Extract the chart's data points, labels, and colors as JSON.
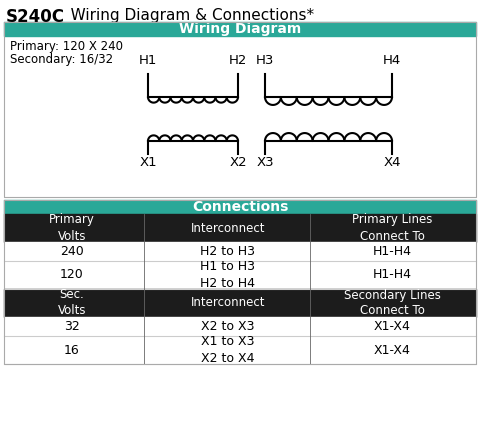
{
  "title_bold": "S240C",
  "title_rest": "   Wiring Diagram & Connections*",
  "section1_header": "Wiring Diagram",
  "section2_header": "Connections",
  "primary_label": "Primary: 120 X 240",
  "secondary_label": "Secondary: 16/32",
  "header_color": "#2aa898",
  "header_text_color": "#ffffff",
  "table_bg_dark": "#1c1c1c",
  "table_bg_white": "#ffffff",
  "H_labels": [
    "H1",
    "H2",
    "H3",
    "H4"
  ],
  "X_labels": [
    "X1",
    "X2",
    "X3",
    "X4"
  ],
  "fig_width": 4.8,
  "fig_height": 4.34,
  "dpi": 100
}
